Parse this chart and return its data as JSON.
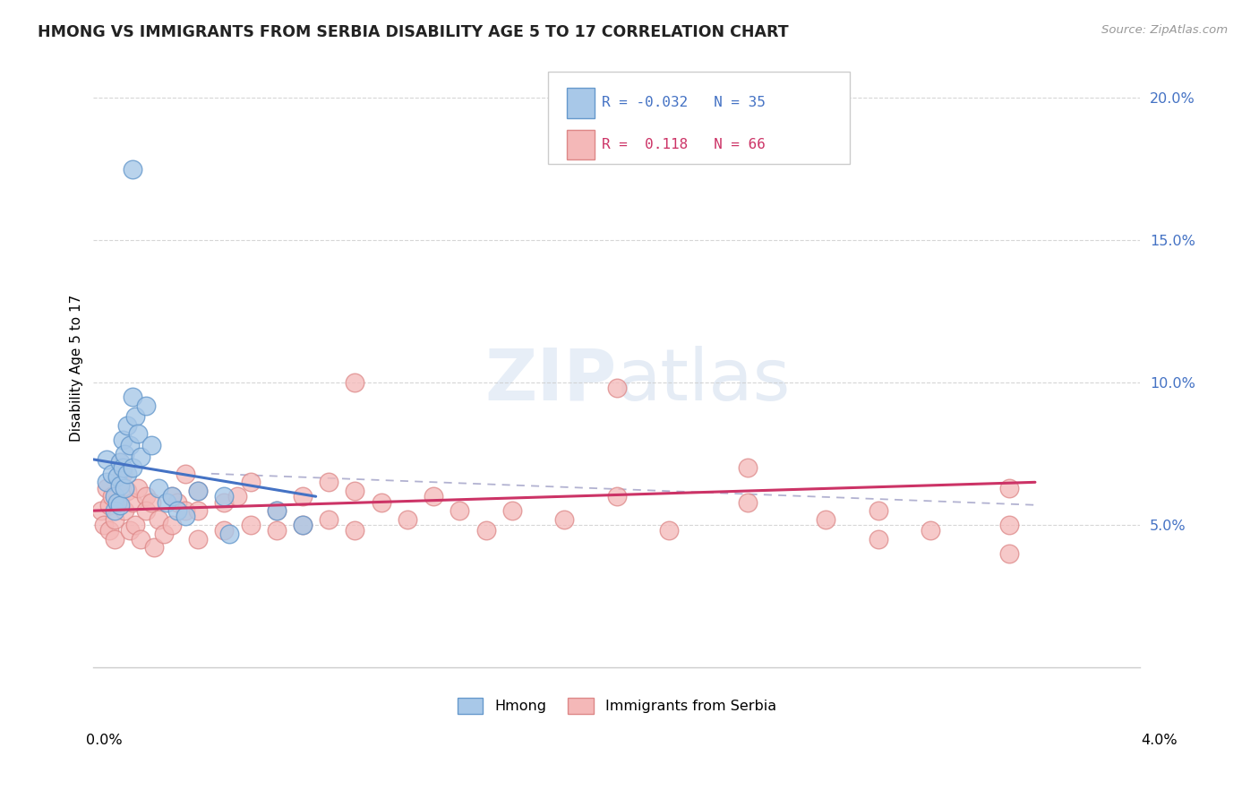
{
  "title": "HMONG VS IMMIGRANTS FROM SERBIA DISABILITY AGE 5 TO 17 CORRELATION CHART",
  "source": "Source: ZipAtlas.com",
  "ylabel": "Disability Age 5 to 17",
  "xlim": [
    0.0,
    0.04
  ],
  "ylim": [
    0.0,
    0.21
  ],
  "yticks": [
    0.05,
    0.1,
    0.15,
    0.2
  ],
  "ytick_labels": [
    "5.0%",
    "10.0%",
    "15.0%",
    "20.0%"
  ],
  "hmong_color_fill": "#a8c8e8",
  "hmong_color_edge": "#6699cc",
  "serbia_color_fill": "#f4b8b8",
  "serbia_color_edge": "#dd8888",
  "hmong_line_color": "#4472c4",
  "serbia_line_color": "#cc3366",
  "dash_line_color": "#aaaacc",
  "background_color": "#ffffff",
  "hmong_x": [
    0.0005,
    0.0005,
    0.0007,
    0.0008,
    0.0008,
    0.0009,
    0.0009,
    0.001,
    0.001,
    0.001,
    0.0011,
    0.0011,
    0.0012,
    0.0012,
    0.0013,
    0.0013,
    0.0014,
    0.0015,
    0.0015,
    0.0016,
    0.0017,
    0.0018,
    0.002,
    0.0022,
    0.0025,
    0.0028,
    0.003,
    0.0032,
    0.0035,
    0.004,
    0.005,
    0.0052,
    0.007,
    0.008,
    0.0015
  ],
  "hmong_y": [
    0.073,
    0.065,
    0.068,
    0.06,
    0.055,
    0.067,
    0.058,
    0.072,
    0.064,
    0.057,
    0.08,
    0.07,
    0.075,
    0.063,
    0.085,
    0.068,
    0.078,
    0.095,
    0.07,
    0.088,
    0.082,
    0.074,
    0.092,
    0.078,
    0.063,
    0.058,
    0.06,
    0.055,
    0.053,
    0.062,
    0.06,
    0.047,
    0.055,
    0.05,
    0.175
  ],
  "serbia_x": [
    0.0003,
    0.0004,
    0.0005,
    0.0006,
    0.0006,
    0.0007,
    0.0008,
    0.0008,
    0.001,
    0.001,
    0.001,
    0.0011,
    0.0012,
    0.0013,
    0.0014,
    0.0015,
    0.0016,
    0.0017,
    0.0018,
    0.002,
    0.002,
    0.0022,
    0.0023,
    0.0025,
    0.0027,
    0.003,
    0.003,
    0.0032,
    0.0035,
    0.0035,
    0.004,
    0.004,
    0.004,
    0.005,
    0.005,
    0.0055,
    0.006,
    0.006,
    0.007,
    0.007,
    0.008,
    0.008,
    0.009,
    0.009,
    0.01,
    0.01,
    0.011,
    0.012,
    0.013,
    0.014,
    0.015,
    0.016,
    0.018,
    0.02,
    0.022,
    0.025,
    0.028,
    0.03,
    0.032,
    0.035,
    0.02,
    0.01,
    0.025,
    0.03,
    0.035,
    0.035
  ],
  "serbia_y": [
    0.055,
    0.05,
    0.063,
    0.057,
    0.048,
    0.06,
    0.052,
    0.045,
    0.072,
    0.065,
    0.058,
    0.068,
    0.055,
    0.062,
    0.048,
    0.058,
    0.05,
    0.063,
    0.045,
    0.06,
    0.055,
    0.058,
    0.042,
    0.052,
    0.047,
    0.06,
    0.05,
    0.058,
    0.068,
    0.055,
    0.062,
    0.055,
    0.045,
    0.058,
    0.048,
    0.06,
    0.065,
    0.05,
    0.055,
    0.048,
    0.06,
    0.05,
    0.065,
    0.052,
    0.062,
    0.048,
    0.058,
    0.052,
    0.06,
    0.055,
    0.048,
    0.055,
    0.052,
    0.06,
    0.048,
    0.058,
    0.052,
    0.055,
    0.048,
    0.063,
    0.098,
    0.1,
    0.07,
    0.045,
    0.04,
    0.05
  ],
  "hmong_trend_x": [
    0.0,
    0.0085
  ],
  "hmong_trend_y": [
    0.073,
    0.06
  ],
  "serbia_trend_x": [
    0.0,
    0.036
  ],
  "serbia_trend_y": [
    0.055,
    0.065
  ],
  "dash_trend_x": [
    0.0045,
    0.036
  ],
  "dash_trend_y": [
    0.068,
    0.057
  ]
}
